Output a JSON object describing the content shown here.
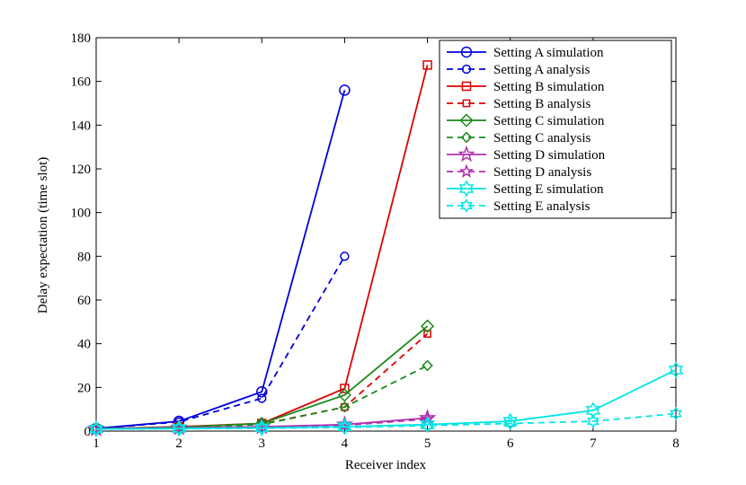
{
  "chart_data": {
    "type": "line",
    "title": "",
    "xlabel": "Receiver index",
    "ylabel": "Delay expectation (time slot)",
    "xlim": [
      1,
      8
    ],
    "ylim": [
      0,
      180
    ],
    "xticks": [
      1,
      2,
      3,
      4,
      5,
      6,
      7,
      8
    ],
    "yticks": [
      0,
      20,
      40,
      60,
      80,
      100,
      120,
      140,
      160,
      180
    ],
    "grid": false,
    "legend_position": "top-right",
    "series": [
      {
        "name": "Setting A simulation",
        "color": "#0000dd",
        "dash": false,
        "marker": "circle",
        "x": [
          1,
          2,
          3,
          4
        ],
        "y": [
          1.2,
          4.5,
          18,
          156
        ]
      },
      {
        "name": "Setting A analysis",
        "color": "#0000dd",
        "dash": true,
        "marker": "circle",
        "x": [
          1,
          2,
          3,
          4
        ],
        "y": [
          1.2,
          4.2,
          15,
          80
        ]
      },
      {
        "name": "Setting B simulation",
        "color": "#dd0000",
        "dash": false,
        "marker": "square",
        "x": [
          1,
          2,
          3,
          4,
          5
        ],
        "y": [
          1.0,
          2.0,
          3.5,
          19.5,
          167.5
        ]
      },
      {
        "name": "Setting B analysis",
        "color": "#dd0000",
        "dash": true,
        "marker": "square",
        "x": [
          1,
          2,
          3,
          4,
          5
        ],
        "y": [
          1.0,
          1.9,
          3.2,
          11,
          44.5
        ]
      },
      {
        "name": "Setting C simulation",
        "color": "#1a8a1a",
        "dash": false,
        "marker": "diamond",
        "x": [
          1,
          2,
          3,
          4,
          5
        ],
        "y": [
          1.0,
          1.8,
          3.5,
          16.5,
          48
        ]
      },
      {
        "name": "Setting C analysis",
        "color": "#1a8a1a",
        "dash": true,
        "marker": "diamond",
        "x": [
          1,
          2,
          3,
          4,
          5
        ],
        "y": [
          1.0,
          1.7,
          3.0,
          11,
          30
        ]
      },
      {
        "name": "Setting D simulation",
        "color": "#b030b0",
        "dash": false,
        "marker": "star5",
        "x": [
          1,
          2,
          3,
          4,
          5
        ],
        "y": [
          1.0,
          1.5,
          2.0,
          3.0,
          6.0
        ]
      },
      {
        "name": "Setting D analysis",
        "color": "#b030b0",
        "dash": true,
        "marker": "star5",
        "x": [
          1,
          2,
          3,
          4,
          5
        ],
        "y": [
          1.0,
          1.4,
          1.8,
          2.6,
          5.5
        ]
      },
      {
        "name": "Setting E simulation",
        "color": "#00e5e5",
        "dash": false,
        "marker": "hexagram",
        "x": [
          1,
          2,
          3,
          4,
          5,
          6,
          7,
          8
        ],
        "y": [
          1.0,
          1.2,
          1.5,
          2.0,
          3.0,
          4.5,
          9.5,
          28
        ]
      },
      {
        "name": "Setting E analysis",
        "color": "#00e5e5",
        "dash": true,
        "marker": "hexagram",
        "x": [
          1,
          2,
          3,
          4,
          5,
          6,
          7,
          8
        ],
        "y": [
          1.0,
          1.1,
          1.3,
          1.7,
          2.5,
          3.5,
          4.5,
          8
        ]
      }
    ]
  }
}
